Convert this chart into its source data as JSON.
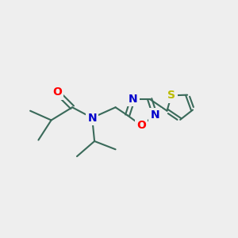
{
  "background_color": "#EEEEEE",
  "bond_color": "#3A6A5A",
  "bond_width": 1.5,
  "atom_colors": {
    "O": "#FF0000",
    "N": "#0000CC",
    "S": "#BBBB00",
    "C": "#3A6A5A"
  },
  "font_size": 10,
  "fig_size": [
    3.0,
    3.0
  ],
  "dpi": 100
}
